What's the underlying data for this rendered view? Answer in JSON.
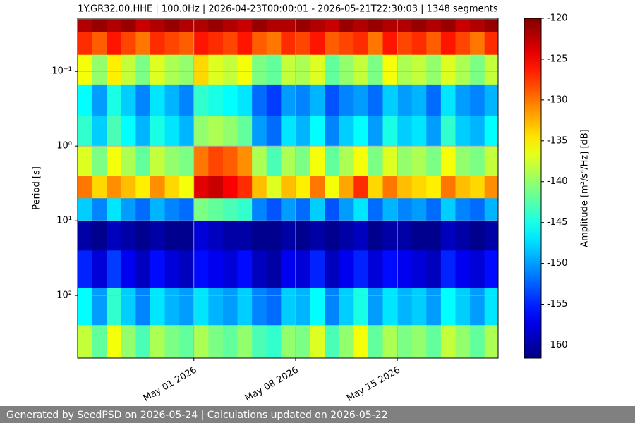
{
  "chart_data": {
    "type": "spectrogram",
    "title": "1Y.GR32.00.HHE | 100.0Hz | 2026-04-23T00:00:01 - 2026-05-21T22:30:03 | 1348 segments",
    "y_label": "Period [s]",
    "xlim": [
      "2026-04-23T00:00:01",
      "2026-05-21T22:30:03"
    ],
    "xticks": [
      {
        "value": "2026-05-01",
        "label": "May 01 2026"
      },
      {
        "value": "2026-05-08",
        "label": "May 08 2026"
      },
      {
        "value": "2026-05-15",
        "label": "May 15 2026"
      }
    ],
    "ylim": [
      0.0195,
      690
    ],
    "yscale": "log",
    "yinvert": true,
    "yticks": [
      {
        "value": 0.1,
        "label": "10⁻¹"
      },
      {
        "value": 1,
        "label": "10⁰"
      },
      {
        "value": 10,
        "label": "10¹"
      },
      {
        "value": 100,
        "label": "10²"
      }
    ],
    "grid": true,
    "x": [
      "2026-04-23",
      "2026-04-24",
      "2026-04-25",
      "2026-04-26",
      "2026-04-27",
      "2026-04-28",
      "2026-04-29",
      "2026-04-30",
      "2026-05-01",
      "2026-05-02",
      "2026-05-03",
      "2026-05-04",
      "2026-05-05",
      "2026-05-06",
      "2026-05-07",
      "2026-05-08",
      "2026-05-09",
      "2026-05-10",
      "2026-05-11",
      "2026-05-12",
      "2026-05-13",
      "2026-05-14",
      "2026-05-15",
      "2026-05-16",
      "2026-05-17",
      "2026-05-18",
      "2026-05-19",
      "2026-05-20",
      "2026-05-21"
    ],
    "period_bins": [
      0.02,
      0.03,
      0.06,
      0.15,
      0.4,
      1,
      2.5,
      5,
      10,
      25,
      80,
      250,
      690
    ],
    "z": [
      [
        -122,
        -121,
        -122,
        -121,
        -123,
        -122,
        -121,
        -122,
        -122,
        -121,
        -122,
        -123,
        -121,
        -122,
        -122,
        -121,
        -122,
        -123,
        -121,
        -122,
        -121,
        -122,
        -122,
        -121,
        -122,
        -121,
        -123,
        -122,
        -121
      ],
      [
        -127,
        -129,
        -126,
        -128,
        -130,
        -127,
        -128,
        -129,
        -126,
        -127,
        -128,
        -126,
        -129,
        -130,
        -127,
        -128,
        -126,
        -129,
        -128,
        -127,
        -130,
        -126,
        -128,
        -127,
        -129,
        -126,
        -128,
        -130,
        -127
      ],
      [
        -136,
        -140,
        -135,
        -138,
        -141,
        -137,
        -139,
        -140,
        -134,
        -137,
        -138,
        -136,
        -141,
        -142,
        -138,
        -139,
        -137,
        -142,
        -140,
        -138,
        -141,
        -136,
        -139,
        -138,
        -140,
        -137,
        -139,
        -141,
        -138
      ],
      [
        -146,
        -150,
        -145,
        -148,
        -151,
        -147,
        -149,
        -151,
        -144,
        -145,
        -146,
        -147,
        -152,
        -154,
        -150,
        -151,
        -149,
        -153,
        -151,
        -150,
        -152,
        -148,
        -150,
        -149,
        -152,
        -147,
        -150,
        -151,
        -149
      ],
      [
        -144,
        -148,
        -143,
        -146,
        -149,
        -145,
        -147,
        -149,
        -140,
        -139,
        -140,
        -142,
        -150,
        -152,
        -147,
        -149,
        -146,
        -151,
        -148,
        -146,
        -150,
        -145,
        -148,
        -147,
        -150,
        -144,
        -148,
        -149,
        -146
      ],
      [
        -137,
        -141,
        -136,
        -139,
        -142,
        -138,
        -140,
        -141,
        -130,
        -128,
        -129,
        -131,
        -139,
        -143,
        -139,
        -141,
        -136,
        -142,
        -139,
        -136,
        -141,
        -137,
        -140,
        -139,
        -141,
        -136,
        -140,
        -141,
        -138
      ],
      [
        -130,
        -134,
        -131,
        -133,
        -135,
        -131,
        -134,
        -136,
        -124,
        -123,
        -125,
        -127,
        -133,
        -137,
        -133,
        -135,
        -130,
        -136,
        -132,
        -127,
        -134,
        -130,
        -133,
        -134,
        -135,
        -130,
        -133,
        -134,
        -131
      ],
      [
        -148,
        -151,
        -147,
        -150,
        -152,
        -149,
        -151,
        -152,
        -141,
        -142,
        -143,
        -144,
        -151,
        -153,
        -150,
        -152,
        -148,
        -153,
        -150,
        -147,
        -152,
        -149,
        -151,
        -150,
        -152,
        -148,
        -151,
        -152,
        -149
      ],
      [
        -160,
        -161,
        -159,
        -160,
        -161,
        -160,
        -161,
        -161,
        -158,
        -159,
        -160,
        -160,
        -161,
        -161,
        -160,
        -161,
        -160,
        -161,
        -160,
        -159,
        -161,
        -160,
        -160,
        -161,
        -161,
        -159,
        -160,
        -161,
        -160
      ],
      [
        -155,
        -158,
        -154,
        -157,
        -159,
        -156,
        -158,
        -159,
        -156,
        -157,
        -158,
        -156,
        -159,
        -160,
        -157,
        -158,
        -155,
        -159,
        -157,
        -155,
        -158,
        -156,
        -157,
        -158,
        -159,
        -155,
        -157,
        -158,
        -156
      ],
      [
        -146,
        -150,
        -144,
        -148,
        -151,
        -147,
        -149,
        -150,
        -147,
        -149,
        -150,
        -148,
        -151,
        -152,
        -148,
        -149,
        -146,
        -151,
        -148,
        -145,
        -150,
        -147,
        -149,
        -148,
        -150,
        -146,
        -148,
        -150,
        -147
      ],
      [
        -138,
        -142,
        -136,
        -140,
        -143,
        -139,
        -141,
        -142,
        -139,
        -141,
        -142,
        -140,
        -143,
        -144,
        -140,
        -141,
        -137,
        -143,
        -140,
        -136,
        -142,
        -139,
        -141,
        -140,
        -142,
        -138,
        -140,
        -142,
        -139
      ]
    ],
    "colorbar": {
      "label": "Amplitude [m²/s⁴/Hz] [dB]",
      "cmap": "jet",
      "lim": [
        -161.6,
        -120
      ],
      "ticks": [
        -120,
        -125,
        -130,
        -135,
        -140,
        -145,
        -150,
        -155,
        -160
      ]
    }
  },
  "footer": "Generated by SeedPSD on 2026-05-24 | Calculations updated on 2026-05-22"
}
